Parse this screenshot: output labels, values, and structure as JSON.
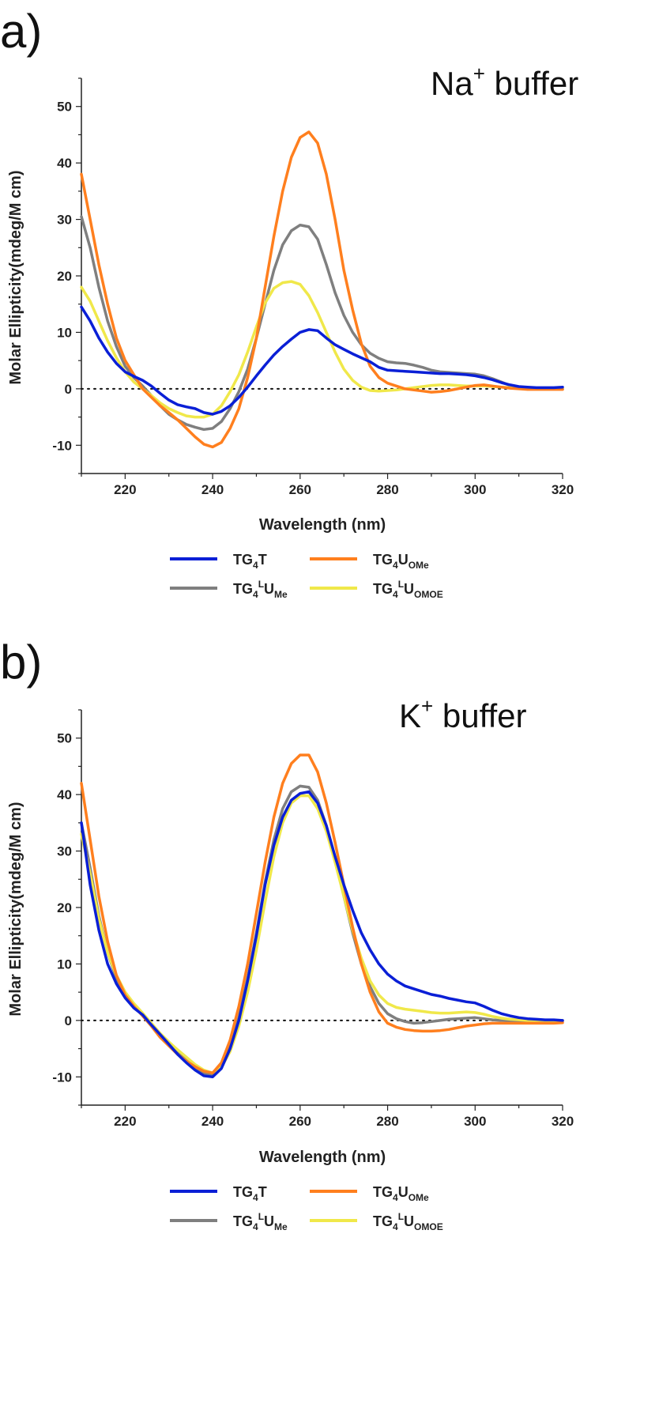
{
  "figure": {
    "panel_labels": [
      "a)",
      "b)"
    ],
    "subscript_four": "4",
    "superscript_L": "L"
  },
  "chart_data": [
    {
      "type": "line",
      "panel": "a)",
      "title_main": "Na",
      "title_sup": "+",
      "title_rest": " buffer",
      "xlabel": "Wavelength (nm)",
      "ylabel": "Molar Ellipticity(mdeg/M cm)",
      "xlim": [
        210,
        320
      ],
      "ylim": [
        -15,
        55
      ],
      "xticks": [
        220,
        240,
        260,
        280,
        300,
        320
      ],
      "yticks": [
        -10,
        0,
        10,
        20,
        30,
        40,
        50
      ],
      "zero_line": "dotted",
      "legend_position": "below",
      "series": [
        {
          "name": "TG4T",
          "name_main": "TG",
          "name_tail": "T",
          "name_sup": "",
          "name_sub": "",
          "color": "#0a1fd6",
          "x": [
            210,
            212,
            214,
            216,
            218,
            220,
            222,
            224,
            226,
            228,
            230,
            232,
            234,
            236,
            238,
            240,
            242,
            244,
            246,
            248,
            250,
            252,
            254,
            256,
            258,
            260,
            262,
            264,
            266,
            268,
            270,
            272,
            274,
            276,
            278,
            280,
            282,
            284,
            286,
            288,
            290,
            292,
            294,
            296,
            298,
            300,
            302,
            304,
            306,
            308,
            310,
            312,
            314,
            316,
            318,
            320
          ],
          "y": [
            14.5,
            12,
            9,
            6.5,
            4.5,
            3,
            2.2,
            1.5,
            0.5,
            -0.8,
            -2,
            -2.8,
            -3.2,
            -3.5,
            -4.2,
            -4.5,
            -4,
            -3,
            -1.5,
            0.3,
            2.3,
            4.2,
            6,
            7.5,
            8.8,
            10,
            10.5,
            10.3,
            9,
            7.8,
            7,
            6.2,
            5.5,
            4.8,
            3.8,
            3.3,
            3.2,
            3.1,
            3,
            2.9,
            2.8,
            2.7,
            2.7,
            2.6,
            2.5,
            2.3,
            2,
            1.6,
            1.1,
            0.7,
            0.4,
            0.3,
            0.2,
            0.2,
            0.2,
            0.3
          ]
        },
        {
          "name": "TG4UOMe",
          "name_main": "TG",
          "name_tail": "U",
          "name_sup": "",
          "name_sub": "OMe",
          "color": "#ff7f1e",
          "x": [
            210,
            212,
            214,
            216,
            218,
            220,
            222,
            224,
            226,
            228,
            230,
            232,
            234,
            236,
            238,
            240,
            242,
            244,
            246,
            248,
            250,
            252,
            254,
            256,
            258,
            260,
            262,
            264,
            266,
            268,
            270,
            272,
            274,
            276,
            278,
            280,
            282,
            284,
            286,
            288,
            290,
            292,
            294,
            296,
            298,
            300,
            302,
            304,
            306,
            308,
            310,
            312,
            314,
            316,
            318,
            320
          ],
          "y": [
            38,
            30,
            22,
            15,
            9,
            5,
            2.5,
            0,
            -1.5,
            -3,
            -4.2,
            -5.5,
            -7,
            -8.5,
            -9.8,
            -10.3,
            -9.5,
            -7,
            -3.5,
            2,
            9,
            18,
            27,
            35,
            41,
            44.5,
            45.5,
            43.5,
            38,
            30,
            21,
            14,
            8,
            4,
            2,
            1,
            0.5,
            0,
            -0.2,
            -0.4,
            -0.6,
            -0.5,
            -0.3,
            0,
            0.3,
            0.6,
            0.7,
            0.5,
            0.3,
            0.1,
            0,
            -0.1,
            -0.1,
            -0.1,
            -0.1,
            -0.1
          ]
        },
        {
          "name": "TG4LUMe",
          "name_main": "TG",
          "name_tail": "U",
          "name_sup": "L",
          "name_sub": "Me",
          "color": "#7f7f7f",
          "x": [
            210,
            212,
            214,
            216,
            218,
            220,
            222,
            224,
            226,
            228,
            230,
            232,
            234,
            236,
            238,
            240,
            242,
            244,
            246,
            248,
            250,
            252,
            254,
            256,
            258,
            260,
            262,
            264,
            266,
            268,
            270,
            272,
            274,
            276,
            278,
            280,
            282,
            284,
            286,
            288,
            290,
            292,
            294,
            296,
            298,
            300,
            302,
            304,
            306,
            308,
            310,
            312,
            314,
            316,
            318,
            320
          ],
          "y": [
            30.5,
            25,
            18,
            12,
            7.5,
            4,
            2,
            0.5,
            -1.2,
            -3,
            -4.5,
            -5.5,
            -6.3,
            -6.8,
            -7.2,
            -7,
            -5.8,
            -3.5,
            -0.5,
            3.5,
            9,
            15,
            21,
            25.5,
            28,
            29,
            28.7,
            26.5,
            22,
            17,
            13,
            10,
            7.8,
            6.3,
            5.4,
            4.8,
            4.6,
            4.5,
            4.2,
            3.8,
            3.3,
            3,
            2.9,
            2.8,
            2.7,
            2.6,
            2.3,
            1.8,
            1.2,
            0.6,
            0.2,
            0,
            0,
            0,
            0,
            0
          ]
        },
        {
          "name": "TG4LUOMOE",
          "name_main": "TG",
          "name_tail": "U",
          "name_sup": "L",
          "name_sub": "OMOE",
          "color": "#f0e84a",
          "x": [
            210,
            212,
            214,
            216,
            218,
            220,
            222,
            224,
            226,
            228,
            230,
            232,
            234,
            236,
            238,
            240,
            242,
            244,
            246,
            248,
            250,
            252,
            254,
            256,
            258,
            260,
            262,
            264,
            266,
            268,
            270,
            272,
            274,
            276,
            278,
            280,
            282,
            284,
            286,
            288,
            290,
            292,
            294,
            296,
            298,
            300,
            302,
            304,
            306,
            308,
            310,
            312,
            314,
            316,
            318,
            320
          ],
          "y": [
            18,
            15.5,
            12,
            8.5,
            5.5,
            3,
            1.2,
            0,
            -1.2,
            -2.5,
            -3.5,
            -4.2,
            -4.8,
            -5,
            -5,
            -4.5,
            -3,
            -0.5,
            2.5,
            6.5,
            11,
            15.2,
            17.8,
            18.8,
            19,
            18.5,
            16.5,
            13.5,
            10,
            6.5,
            3.5,
            1.5,
            0.3,
            -0.3,
            -0.4,
            -0.3,
            -0.2,
            0,
            0.2,
            0.4,
            0.6,
            0.7,
            0.7,
            0.6,
            0.5,
            0.5,
            0.5,
            0.4,
            0.3,
            0.2,
            0.1,
            0,
            0,
            0,
            0,
            0
          ]
        }
      ]
    },
    {
      "type": "line",
      "panel": "b)",
      "title_main": "K",
      "title_sup": "+",
      "title_rest": " buffer",
      "xlabel": "Wavelength (nm)",
      "ylabel": "Molar Ellipticity(mdeg/M cm)",
      "xlim": [
        210,
        320
      ],
      "ylim": [
        -15,
        55
      ],
      "xticks": [
        220,
        240,
        260,
        280,
        300,
        320
      ],
      "yticks": [
        -10,
        0,
        10,
        20,
        30,
        40,
        50
      ],
      "zero_line": "dotted",
      "legend_position": "below",
      "series": [
        {
          "name": "TG4T",
          "name_main": "TG",
          "name_tail": "T",
          "name_sup": "",
          "name_sub": "",
          "color": "#0a1fd6",
          "x": [
            210,
            212,
            214,
            216,
            218,
            220,
            222,
            224,
            226,
            228,
            230,
            232,
            234,
            236,
            238,
            240,
            242,
            244,
            246,
            248,
            250,
            252,
            254,
            256,
            258,
            260,
            262,
            264,
            266,
            268,
            270,
            272,
            274,
            276,
            278,
            280,
            282,
            284,
            286,
            288,
            290,
            292,
            294,
            296,
            298,
            300,
            302,
            304,
            306,
            308,
            310,
            312,
            314,
            316,
            318,
            320
          ],
          "y": [
            35,
            24,
            16,
            10,
            6.5,
            4,
            2.2,
            1,
            -0.8,
            -2.5,
            -4.2,
            -6,
            -7.5,
            -8.8,
            -9.8,
            -10,
            -8.5,
            -5,
            0,
            7,
            15,
            24,
            31,
            36,
            39,
            40.2,
            40.5,
            38.5,
            34.5,
            29,
            24,
            19.5,
            15.5,
            12.5,
            10,
            8.2,
            7,
            6.1,
            5.6,
            5.1,
            4.6,
            4.3,
            3.9,
            3.6,
            3.3,
            3.1,
            2.5,
            1.8,
            1.2,
            0.8,
            0.5,
            0.3,
            0.2,
            0.1,
            0.1,
            0
          ]
        },
        {
          "name": "TG4UOMe",
          "name_main": "TG",
          "name_tail": "U",
          "name_sup": "",
          "name_sub": "OMe",
          "color": "#ff7f1e",
          "x": [
            210,
            212,
            214,
            216,
            218,
            220,
            222,
            224,
            226,
            228,
            230,
            232,
            234,
            236,
            238,
            240,
            242,
            244,
            246,
            248,
            250,
            252,
            254,
            256,
            258,
            260,
            262,
            264,
            266,
            268,
            270,
            272,
            274,
            276,
            278,
            280,
            282,
            284,
            286,
            288,
            290,
            292,
            294,
            296,
            298,
            300,
            302,
            304,
            306,
            308,
            310,
            312,
            314,
            316,
            318,
            320
          ],
          "y": [
            42,
            32,
            22,
            14,
            8,
            4.5,
            2.5,
            0.8,
            -1,
            -3,
            -4.5,
            -6,
            -7.2,
            -8.2,
            -9,
            -9.3,
            -7.5,
            -3.5,
            2.5,
            10,
            19,
            28,
            36,
            42,
            45.5,
            47,
            47,
            44,
            38.5,
            31.5,
            24,
            16.5,
            10,
            5,
            1.5,
            -0.5,
            -1.2,
            -1.6,
            -1.8,
            -1.9,
            -1.9,
            -1.8,
            -1.6,
            -1.3,
            -1,
            -0.8,
            -0.6,
            -0.5,
            -0.5,
            -0.5,
            -0.5,
            -0.5,
            -0.5,
            -0.5,
            -0.5,
            -0.4
          ]
        },
        {
          "name": "TG4LUMe",
          "name_main": "TG",
          "name_tail": "U",
          "name_sup": "L",
          "name_sub": "Me",
          "color": "#7f7f7f",
          "x": [
            210,
            212,
            214,
            216,
            218,
            220,
            222,
            224,
            226,
            228,
            230,
            232,
            234,
            236,
            238,
            240,
            242,
            244,
            246,
            248,
            250,
            252,
            254,
            256,
            258,
            260,
            262,
            264,
            266,
            268,
            270,
            272,
            274,
            276,
            278,
            280,
            282,
            284,
            286,
            288,
            290,
            292,
            294,
            296,
            298,
            300,
            302,
            304,
            306,
            308,
            310,
            312,
            314,
            316,
            318,
            320
          ],
          "y": [
            35,
            27,
            18.5,
            12,
            7.5,
            4.5,
            2.8,
            1.2,
            -0.6,
            -2.5,
            -4,
            -5.5,
            -7,
            -8.3,
            -9.3,
            -9.6,
            -8,
            -4.5,
            0.5,
            7.5,
            15.5,
            24.5,
            32,
            37.5,
            40.5,
            41.5,
            41.3,
            39,
            34.5,
            28.5,
            22,
            15.5,
            10,
            6,
            3,
            1.2,
            0.3,
            -0.2,
            -0.5,
            -0.4,
            -0.2,
            0,
            0.2,
            0.3,
            0.4,
            0.5,
            0.3,
            0.1,
            0,
            -0.1,
            -0.1,
            -0.1,
            -0.1,
            -0.1,
            -0.1,
            -0.1
          ]
        },
        {
          "name": "TG4LUOMOE",
          "name_main": "TG",
          "name_tail": "U",
          "name_sup": "L",
          "name_sub": "OMOE",
          "color": "#f0e84a",
          "x": [
            210,
            212,
            214,
            216,
            218,
            220,
            222,
            224,
            226,
            228,
            230,
            232,
            234,
            236,
            238,
            240,
            242,
            244,
            246,
            248,
            250,
            252,
            254,
            256,
            258,
            260,
            262,
            264,
            266,
            268,
            270,
            272,
            274,
            276,
            278,
            280,
            282,
            284,
            286,
            288,
            290,
            292,
            294,
            296,
            298,
            300,
            302,
            304,
            306,
            308,
            310,
            312,
            314,
            316,
            318,
            320
          ],
          "y": [
            33,
            26,
            18,
            12,
            8,
            5,
            3,
            1.3,
            -0.5,
            -2.3,
            -3.8,
            -5.2,
            -6.5,
            -7.8,
            -8.8,
            -9.3,
            -8.3,
            -5.5,
            -1,
            5,
            12.5,
            21,
            29,
            35,
            38.5,
            39.8,
            39.8,
            37.5,
            33.5,
            28,
            22,
            16,
            11,
            7,
            4.5,
            3,
            2.3,
            2,
            1.8,
            1.6,
            1.4,
            1.3,
            1.3,
            1.4,
            1.5,
            1.4,
            1.1,
            0.7,
            0.4,
            0.2,
            0.1,
            0,
            0,
            0,
            0,
            0
          ]
        }
      ]
    }
  ]
}
